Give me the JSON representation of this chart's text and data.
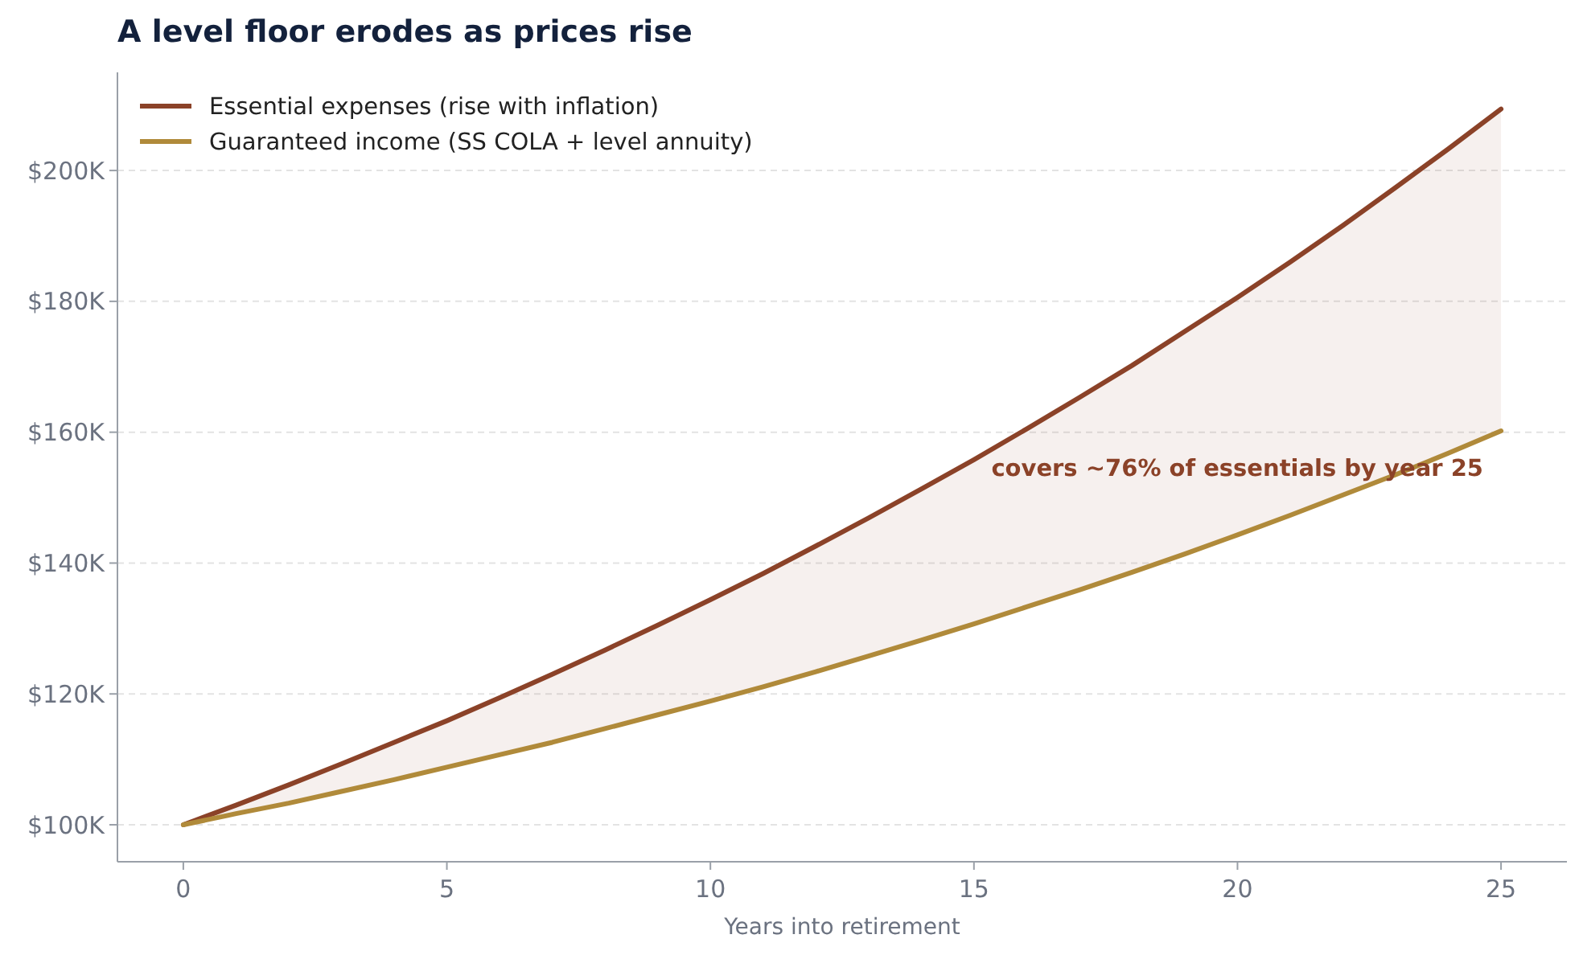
{
  "chart_data": {
    "type": "line",
    "title": "A level floor erodes as prices rise",
    "xlabel": "Years into retirement",
    "x": [
      0,
      1,
      2,
      3,
      4,
      5,
      6,
      7,
      8,
      9,
      10,
      11,
      12,
      13,
      14,
      15,
      16,
      17,
      18,
      19,
      20,
      21,
      22,
      23,
      24,
      25
    ],
    "series": [
      {
        "name": "Essential expenses (rise with inflation)",
        "color": "#8b4228",
        "values": [
          100,
          103,
          106.1,
          109.3,
          112.6,
          115.9,
          119.4,
          123,
          126.7,
          130.5,
          134.4,
          138.4,
          142.6,
          146.9,
          151.3,
          155.8,
          160.5,
          165.3,
          170.2,
          175.4,
          180.6,
          186,
          191.6,
          197.4,
          203.3,
          209.4
        ]
      },
      {
        "name": "Guaranteed income (SS COLA + level annuity)",
        "color": "#b08a3a",
        "values": [
          100,
          101.7,
          103.3,
          105.1,
          106.9,
          108.8,
          110.7,
          112.6,
          114.7,
          116.8,
          118.9,
          121.1,
          123.4,
          125.8,
          128.2,
          130.7,
          133.3,
          135.9,
          138.6,
          141.4,
          144.3,
          147.3,
          150.4,
          153.5,
          156.8,
          160.2
        ]
      }
    ],
    "xlim": [
      -1.25,
      26.25
    ],
    "xticks": [
      0,
      5,
      10,
      15,
      20,
      25
    ],
    "ylim": [
      94.35,
      215
    ],
    "yticks": [
      {
        "value": 100,
        "label": "$100K"
      },
      {
        "value": 120,
        "label": "$120K"
      },
      {
        "value": 140,
        "label": "$140K"
      },
      {
        "value": 160,
        "label": "$160K"
      },
      {
        "value": 180,
        "label": "$180K"
      },
      {
        "value": 200,
        "label": "$200K"
      }
    ],
    "annotations": [
      "covers ~76% of essentials by year 25"
    ],
    "grid": "y",
    "legend": "top left",
    "marker": "none",
    "line_style": "solid"
  }
}
